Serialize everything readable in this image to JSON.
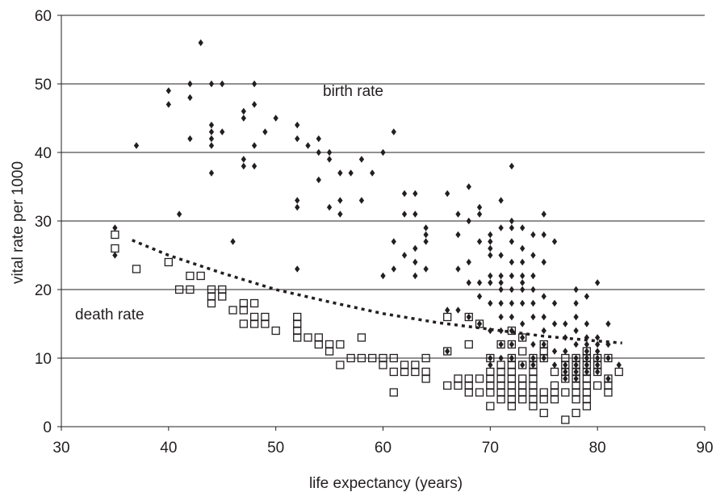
{
  "chart_data": {
    "type": "scatter",
    "xlabel": "life expectancy (years)",
    "ylabel": "vital rate per 1000",
    "xlim": [
      30,
      90
    ],
    "ylim": [
      0,
      60
    ],
    "x_ticks": [
      30,
      40,
      50,
      60,
      70,
      80,
      90
    ],
    "y_ticks": [
      0,
      10,
      20,
      30,
      40,
      50,
      60
    ],
    "grid": "horizontal",
    "series": [
      {
        "name": "birth rate",
        "marker": "filled-diamond",
        "color": "#231f20",
        "points": [
          [
            35,
            29
          ],
          [
            35,
            25
          ],
          [
            37,
            41
          ],
          [
            40,
            49
          ],
          [
            40,
            47
          ],
          [
            41,
            31
          ],
          [
            42,
            50
          ],
          [
            42,
            48
          ],
          [
            42,
            42
          ],
          [
            43,
            56
          ],
          [
            44,
            50
          ],
          [
            44,
            44
          ],
          [
            44,
            43
          ],
          [
            44,
            42
          ],
          [
            44,
            41
          ],
          [
            44,
            37
          ],
          [
            45,
            50
          ],
          [
            45,
            43
          ],
          [
            46,
            27
          ],
          [
            47,
            46
          ],
          [
            47,
            45
          ],
          [
            47,
            39
          ],
          [
            47,
            38
          ],
          [
            48,
            50
          ],
          [
            48,
            47
          ],
          [
            48,
            41
          ],
          [
            48,
            38
          ],
          [
            49,
            43
          ],
          [
            50,
            45
          ],
          [
            52,
            44
          ],
          [
            52,
            42
          ],
          [
            52,
            33
          ],
          [
            52,
            32
          ],
          [
            52,
            23
          ],
          [
            53,
            41
          ],
          [
            54,
            42
          ],
          [
            54,
            40
          ],
          [
            54,
            36
          ],
          [
            55,
            40
          ],
          [
            55,
            39
          ],
          [
            55,
            32
          ],
          [
            56,
            37
          ],
          [
            56,
            33
          ],
          [
            56,
            31
          ],
          [
            57,
            37
          ],
          [
            58,
            39
          ],
          [
            58,
            33
          ],
          [
            59,
            37
          ],
          [
            60,
            40
          ],
          [
            60,
            22
          ],
          [
            61,
            43
          ],
          [
            61,
            27
          ],
          [
            61,
            23
          ],
          [
            62,
            34
          ],
          [
            62,
            31
          ],
          [
            62,
            25
          ],
          [
            63,
            34
          ],
          [
            63,
            31
          ],
          [
            63,
            26
          ],
          [
            63,
            24
          ],
          [
            63,
            22
          ],
          [
            64,
            29
          ],
          [
            64,
            28
          ],
          [
            64,
            27
          ],
          [
            64,
            23
          ],
          [
            66,
            34
          ],
          [
            66,
            17
          ],
          [
            66,
            11
          ],
          [
            67,
            31
          ],
          [
            67,
            28
          ],
          [
            67,
            23
          ],
          [
            67,
            17
          ],
          [
            68,
            35
          ],
          [
            68,
            30
          ],
          [
            68,
            24
          ],
          [
            68,
            21
          ],
          [
            68,
            16
          ],
          [
            69,
            32
          ],
          [
            69,
            31
          ],
          [
            69,
            27
          ],
          [
            69,
            21
          ],
          [
            69,
            19
          ],
          [
            69,
            15
          ],
          [
            70,
            28
          ],
          [
            70,
            27
          ],
          [
            70,
            26
          ],
          [
            70,
            25
          ],
          [
            70,
            22
          ],
          [
            70,
            21
          ],
          [
            70,
            18
          ],
          [
            70,
            14
          ],
          [
            70,
            10
          ],
          [
            70,
            9
          ],
          [
            71,
            33
          ],
          [
            71,
            29
          ],
          [
            71,
            25
          ],
          [
            71,
            22
          ],
          [
            71,
            21
          ],
          [
            71,
            20
          ],
          [
            71,
            18
          ],
          [
            71,
            16
          ],
          [
            71,
            14
          ],
          [
            71,
            12
          ],
          [
            71,
            10
          ],
          [
            72,
            38
          ],
          [
            72,
            30
          ],
          [
            72,
            29
          ],
          [
            72,
            27
          ],
          [
            72,
            24
          ],
          [
            72,
            22
          ],
          [
            72,
            20
          ],
          [
            72,
            18
          ],
          [
            72,
            16
          ],
          [
            72,
            14
          ],
          [
            72,
            12
          ],
          [
            72,
            10
          ],
          [
            73,
            29
          ],
          [
            73,
            26
          ],
          [
            73,
            24
          ],
          [
            73,
            22
          ],
          [
            73,
            21
          ],
          [
            73,
            20
          ],
          [
            73,
            18
          ],
          [
            73,
            15
          ],
          [
            73,
            13
          ],
          [
            73,
            9
          ],
          [
            74,
            28
          ],
          [
            74,
            25
          ],
          [
            74,
            22
          ],
          [
            74,
            20
          ],
          [
            74,
            18
          ],
          [
            74,
            16
          ],
          [
            74,
            12
          ],
          [
            74,
            10
          ],
          [
            74,
            9
          ],
          [
            75,
            31
          ],
          [
            75,
            28
          ],
          [
            75,
            24
          ],
          [
            75,
            19
          ],
          [
            75,
            16
          ],
          [
            75,
            14
          ],
          [
            75,
            12
          ],
          [
            75,
            10
          ],
          [
            76,
            27
          ],
          [
            76,
            18
          ],
          [
            76,
            15
          ],
          [
            76,
            11
          ],
          [
            76,
            9
          ],
          [
            77,
            15
          ],
          [
            77,
            13
          ],
          [
            77,
            11
          ],
          [
            77,
            9
          ],
          [
            77,
            8
          ],
          [
            77,
            7
          ],
          [
            78,
            20
          ],
          [
            78,
            18
          ],
          [
            78,
            16
          ],
          [
            78,
            14
          ],
          [
            78,
            12
          ],
          [
            78,
            10
          ],
          [
            78,
            9
          ],
          [
            78,
            8
          ],
          [
            78,
            7
          ],
          [
            79,
            19
          ],
          [
            79,
            15
          ],
          [
            79,
            13
          ],
          [
            79,
            12
          ],
          [
            79,
            11
          ],
          [
            79,
            10
          ],
          [
            79,
            9
          ],
          [
            79,
            8
          ],
          [
            80,
            21
          ],
          [
            80,
            13
          ],
          [
            80,
            12
          ],
          [
            80,
            11
          ],
          [
            80,
            10
          ],
          [
            80,
            9
          ],
          [
            80,
            8
          ],
          [
            81,
            15
          ],
          [
            81,
            12
          ],
          [
            81,
            10
          ],
          [
            81,
            7
          ],
          [
            82,
            9
          ]
        ]
      },
      {
        "name": "death rate",
        "marker": "open-square",
        "color": "#231f20",
        "points": [
          [
            35,
            28
          ],
          [
            35,
            26
          ],
          [
            37,
            23
          ],
          [
            40,
            24
          ],
          [
            41,
            20
          ],
          [
            42,
            22
          ],
          [
            42,
            20
          ],
          [
            43,
            22
          ],
          [
            44,
            20
          ],
          [
            44,
            19
          ],
          [
            44,
            18
          ],
          [
            45,
            20
          ],
          [
            45,
            19
          ],
          [
            46,
            17
          ],
          [
            47,
            18
          ],
          [
            47,
            17
          ],
          [
            47,
            15
          ],
          [
            48,
            18
          ],
          [
            48,
            16
          ],
          [
            48,
            15
          ],
          [
            49,
            16
          ],
          [
            49,
            15
          ],
          [
            50,
            14
          ],
          [
            52,
            16
          ],
          [
            52,
            15
          ],
          [
            52,
            14
          ],
          [
            52,
            13
          ],
          [
            53,
            13
          ],
          [
            54,
            13
          ],
          [
            54,
            12
          ],
          [
            55,
            12
          ],
          [
            55,
            11
          ],
          [
            56,
            12
          ],
          [
            56,
            9
          ],
          [
            57,
            10
          ],
          [
            58,
            13
          ],
          [
            58,
            10
          ],
          [
            59,
            10
          ],
          [
            60,
            10
          ],
          [
            60,
            9
          ],
          [
            61,
            10
          ],
          [
            61,
            8
          ],
          [
            61,
            5
          ],
          [
            62,
            9
          ],
          [
            62,
            8
          ],
          [
            63,
            9
          ],
          [
            63,
            8
          ],
          [
            64,
            10
          ],
          [
            64,
            8
          ],
          [
            64,
            7
          ],
          [
            66,
            16
          ],
          [
            66,
            11
          ],
          [
            66,
            6
          ],
          [
            67,
            7
          ],
          [
            67,
            6
          ],
          [
            68,
            16
          ],
          [
            68,
            12
          ],
          [
            68,
            7
          ],
          [
            68,
            6
          ],
          [
            68,
            5
          ],
          [
            69,
            15
          ],
          [
            69,
            7
          ],
          [
            69,
            5
          ],
          [
            70,
            10
          ],
          [
            70,
            8
          ],
          [
            70,
            7
          ],
          [
            70,
            6
          ],
          [
            70,
            5
          ],
          [
            70,
            3
          ],
          [
            71,
            12
          ],
          [
            71,
            9
          ],
          [
            71,
            8
          ],
          [
            71,
            7
          ],
          [
            71,
            6
          ],
          [
            71,
            5
          ],
          [
            71,
            4
          ],
          [
            72,
            14
          ],
          [
            72,
            12
          ],
          [
            72,
            10
          ],
          [
            72,
            9
          ],
          [
            72,
            8
          ],
          [
            72,
            7
          ],
          [
            72,
            6
          ],
          [
            72,
            5
          ],
          [
            72,
            4
          ],
          [
            72,
            3
          ],
          [
            73,
            13
          ],
          [
            73,
            11
          ],
          [
            73,
            9
          ],
          [
            73,
            7
          ],
          [
            73,
            6
          ],
          [
            73,
            5
          ],
          [
            73,
            4
          ],
          [
            74,
            10
          ],
          [
            74,
            9
          ],
          [
            74,
            8
          ],
          [
            74,
            7
          ],
          [
            74,
            6
          ],
          [
            74,
            5
          ],
          [
            74,
            4
          ],
          [
            74,
            3
          ],
          [
            75,
            12
          ],
          [
            75,
            11
          ],
          [
            75,
            10
          ],
          [
            75,
            5
          ],
          [
            75,
            4
          ],
          [
            75,
            2
          ],
          [
            76,
            8
          ],
          [
            76,
            6
          ],
          [
            76,
            5
          ],
          [
            76,
            4
          ],
          [
            77,
            10
          ],
          [
            77,
            9
          ],
          [
            77,
            8
          ],
          [
            77,
            7
          ],
          [
            77,
            5
          ],
          [
            77,
            1
          ],
          [
            78,
            10
          ],
          [
            78,
            9
          ],
          [
            78,
            8
          ],
          [
            78,
            7
          ],
          [
            78,
            6
          ],
          [
            78,
            5
          ],
          [
            78,
            4
          ],
          [
            78,
            2
          ],
          [
            79,
            11
          ],
          [
            79,
            10
          ],
          [
            79,
            9
          ],
          [
            79,
            8
          ],
          [
            79,
            7
          ],
          [
            79,
            6
          ],
          [
            79,
            5
          ],
          [
            79,
            4
          ],
          [
            79,
            3
          ],
          [
            80,
            10
          ],
          [
            80,
            9
          ],
          [
            80,
            8
          ],
          [
            80,
            6
          ],
          [
            81,
            10
          ],
          [
            81,
            7
          ],
          [
            81,
            6
          ],
          [
            81,
            5
          ],
          [
            82,
            8
          ]
        ]
      },
      {
        "name": "",
        "marker": "dotted-line",
        "color": "#231f20",
        "points": [
          [
            36.6,
            27.2
          ],
          [
            40,
            25
          ],
          [
            45,
            22.4
          ],
          [
            50,
            20
          ],
          [
            55,
            18.2
          ],
          [
            60,
            16.5
          ],
          [
            65,
            15.2
          ],
          [
            70,
            14.2
          ],
          [
            75,
            13.2
          ],
          [
            80,
            12.5
          ],
          [
            82.3,
            12.2
          ]
        ]
      }
    ],
    "labels": {
      "birth_rate": "birth rate",
      "death_rate": "death rate"
    }
  }
}
